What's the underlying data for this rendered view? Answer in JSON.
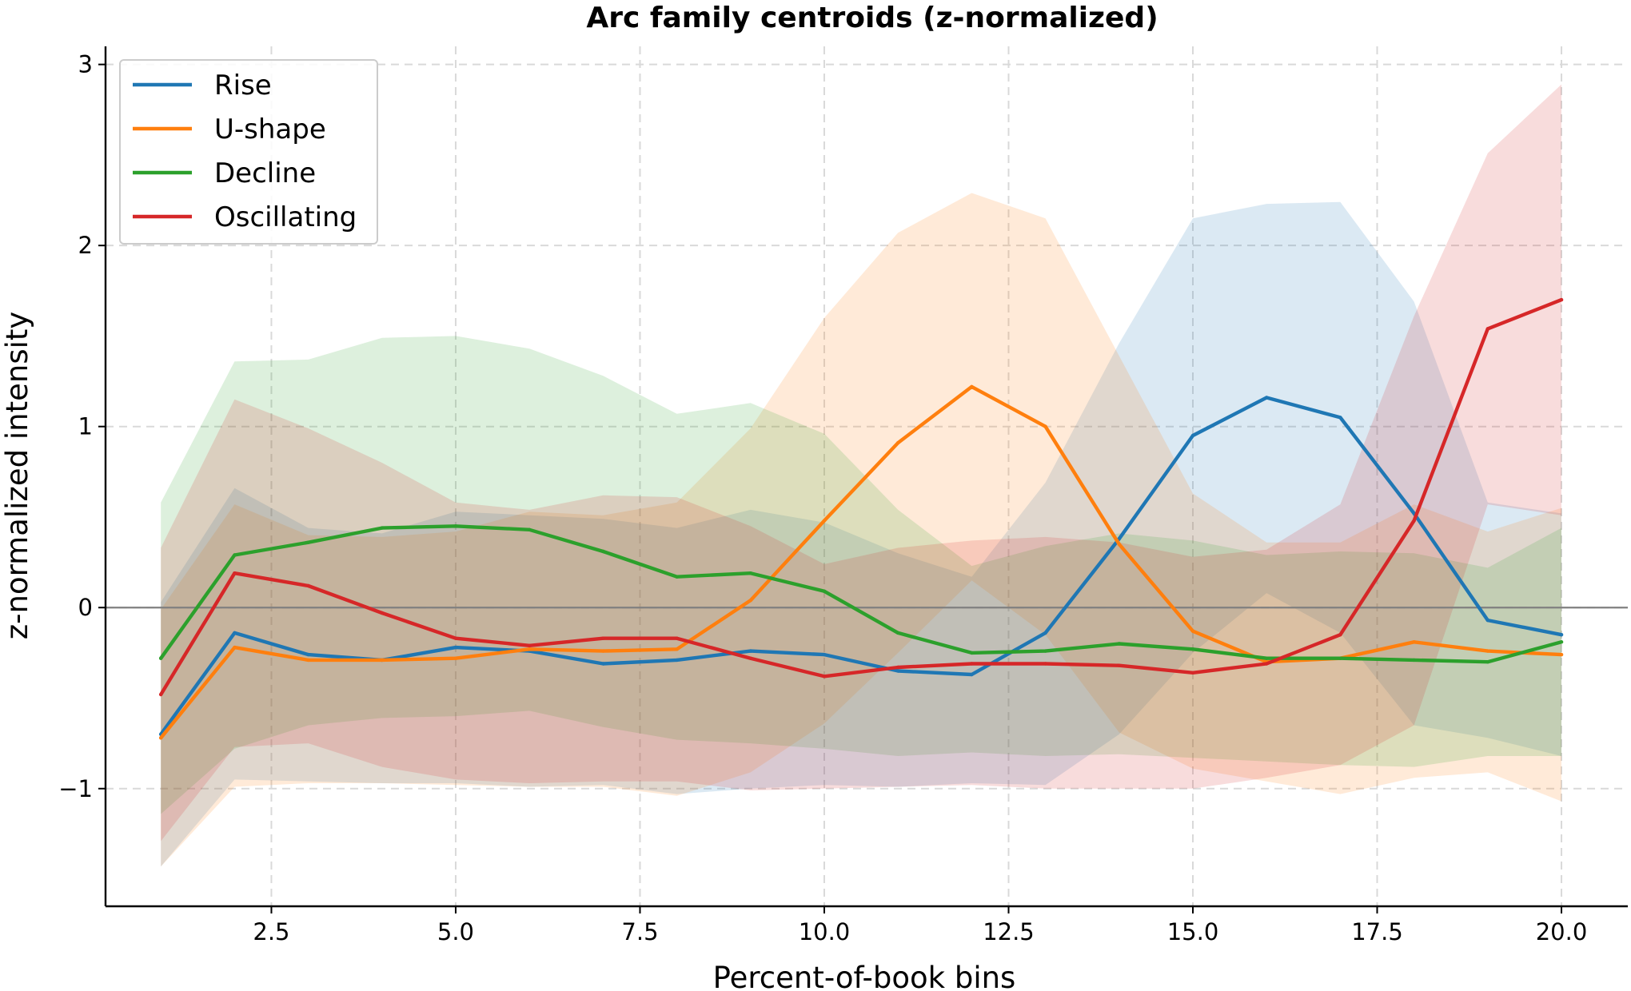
{
  "chart_data": {
    "type": "line",
    "title": "Arc family centroids (z-normalized)",
    "xlabel": "Percent-of-book bins",
    "ylabel": "z-normalized intensity",
    "xlim": [
      0.25,
      20.9
    ],
    "ylim": [
      -1.65,
      3.1
    ],
    "grid": true,
    "legend_position": "top-left",
    "reference_line_y": 0,
    "x": [
      1,
      2,
      3,
      4,
      5,
      6,
      7,
      8,
      9,
      10,
      11,
      12,
      13,
      14,
      15,
      16,
      17,
      18,
      19,
      20
    ],
    "x_ticks": [
      2.5,
      5.0,
      7.5,
      10.0,
      12.5,
      15.0,
      17.5,
      20.0
    ],
    "x_tick_labels": [
      "2.5",
      "5.0",
      "7.5",
      "10.0",
      "12.5",
      "15.0",
      "17.5",
      "20.0"
    ],
    "y_ticks": [
      -1,
      0,
      1,
      2,
      3
    ],
    "y_tick_labels": [
      "−1",
      "0",
      "1",
      "2",
      "3"
    ],
    "series": [
      {
        "name": "Rise",
        "color": "#1f77b4",
        "values": [
          -0.7,
          -0.14,
          -0.26,
          -0.29,
          -0.22,
          -0.24,
          -0.31,
          -0.29,
          -0.24,
          -0.26,
          -0.35,
          -0.37,
          -0.14,
          0.38,
          0.95,
          1.16,
          1.05,
          0.52,
          -0.07,
          -0.15
        ],
        "upper": [
          0.03,
          0.66,
          0.44,
          0.41,
          0.53,
          0.51,
          0.49,
          0.44,
          0.54,
          0.47,
          0.3,
          0.17,
          0.69,
          1.46,
          2.15,
          2.23,
          2.24,
          1.69,
          0.58,
          0.52
        ],
        "lower": [
          -1.43,
          -0.95,
          -0.96,
          -0.97,
          -0.97,
          -0.99,
          -0.98,
          -1.03,
          -1.0,
          -0.98,
          -0.99,
          -0.97,
          -0.98,
          -0.7,
          -0.25,
          0.08,
          -0.14,
          -0.65,
          -0.72,
          -0.82
        ]
      },
      {
        "name": "U-shape",
        "color": "#ff7f0e",
        "values": [
          -0.72,
          -0.22,
          -0.29,
          -0.29,
          -0.28,
          -0.23,
          -0.24,
          -0.23,
          0.04,
          0.48,
          0.91,
          1.22,
          1.0,
          0.35,
          -0.13,
          -0.3,
          -0.28,
          -0.19,
          -0.24,
          -0.26
        ],
        "upper": [
          -0.01,
          0.57,
          0.4,
          0.39,
          0.42,
          0.53,
          0.51,
          0.58,
          0.99,
          1.6,
          2.07,
          2.29,
          2.15,
          1.39,
          0.63,
          0.36,
          0.36,
          0.57,
          0.42,
          0.55
        ],
        "lower": [
          -1.43,
          -0.99,
          -0.97,
          -0.97,
          -0.98,
          -0.99,
          -0.99,
          -1.04,
          -0.91,
          -0.64,
          -0.25,
          0.15,
          -0.15,
          -0.69,
          -0.89,
          -0.96,
          -1.03,
          -0.94,
          -0.91,
          -1.07
        ]
      },
      {
        "name": "Decline",
        "color": "#2ca02c",
        "values": [
          -0.28,
          0.29,
          0.36,
          0.44,
          0.45,
          0.43,
          0.31,
          0.17,
          0.19,
          0.09,
          -0.14,
          -0.25,
          -0.24,
          -0.2,
          -0.23,
          -0.28,
          -0.28,
          -0.29,
          -0.3,
          -0.19
        ],
        "upper": [
          0.58,
          1.36,
          1.37,
          1.49,
          1.5,
          1.43,
          1.28,
          1.07,
          1.13,
          0.96,
          0.54,
          0.23,
          0.34,
          0.41,
          0.37,
          0.29,
          0.31,
          0.3,
          0.22,
          0.44
        ],
        "lower": [
          -1.14,
          -0.78,
          -0.65,
          -0.61,
          -0.6,
          -0.57,
          -0.66,
          -0.73,
          -0.75,
          -0.78,
          -0.82,
          -0.8,
          -0.82,
          -0.81,
          -0.83,
          -0.85,
          -0.87,
          -0.88,
          -0.82,
          -0.82
        ]
      },
      {
        "name": "Oscillating",
        "color": "#d62728",
        "values": [
          -0.48,
          0.19,
          0.12,
          -0.03,
          -0.17,
          -0.21,
          -0.17,
          -0.17,
          -0.28,
          -0.38,
          -0.33,
          -0.31,
          -0.31,
          -0.32,
          -0.36,
          -0.31,
          -0.15,
          0.48,
          1.54,
          1.7
        ],
        "upper": [
          0.33,
          1.15,
          0.99,
          0.8,
          0.58,
          0.54,
          0.62,
          0.61,
          0.45,
          0.24,
          0.33,
          0.37,
          0.39,
          0.36,
          0.28,
          0.32,
          0.57,
          1.61,
          2.51,
          2.89
        ],
        "lower": [
          -1.29,
          -0.77,
          -0.75,
          -0.88,
          -0.95,
          -0.97,
          -0.96,
          -0.96,
          -1.01,
          -1.0,
          -0.99,
          -0.98,
          -1.0,
          -1.0,
          -1.0,
          -0.94,
          -0.87,
          -0.65,
          0.57,
          0.51
        ]
      }
    ]
  }
}
